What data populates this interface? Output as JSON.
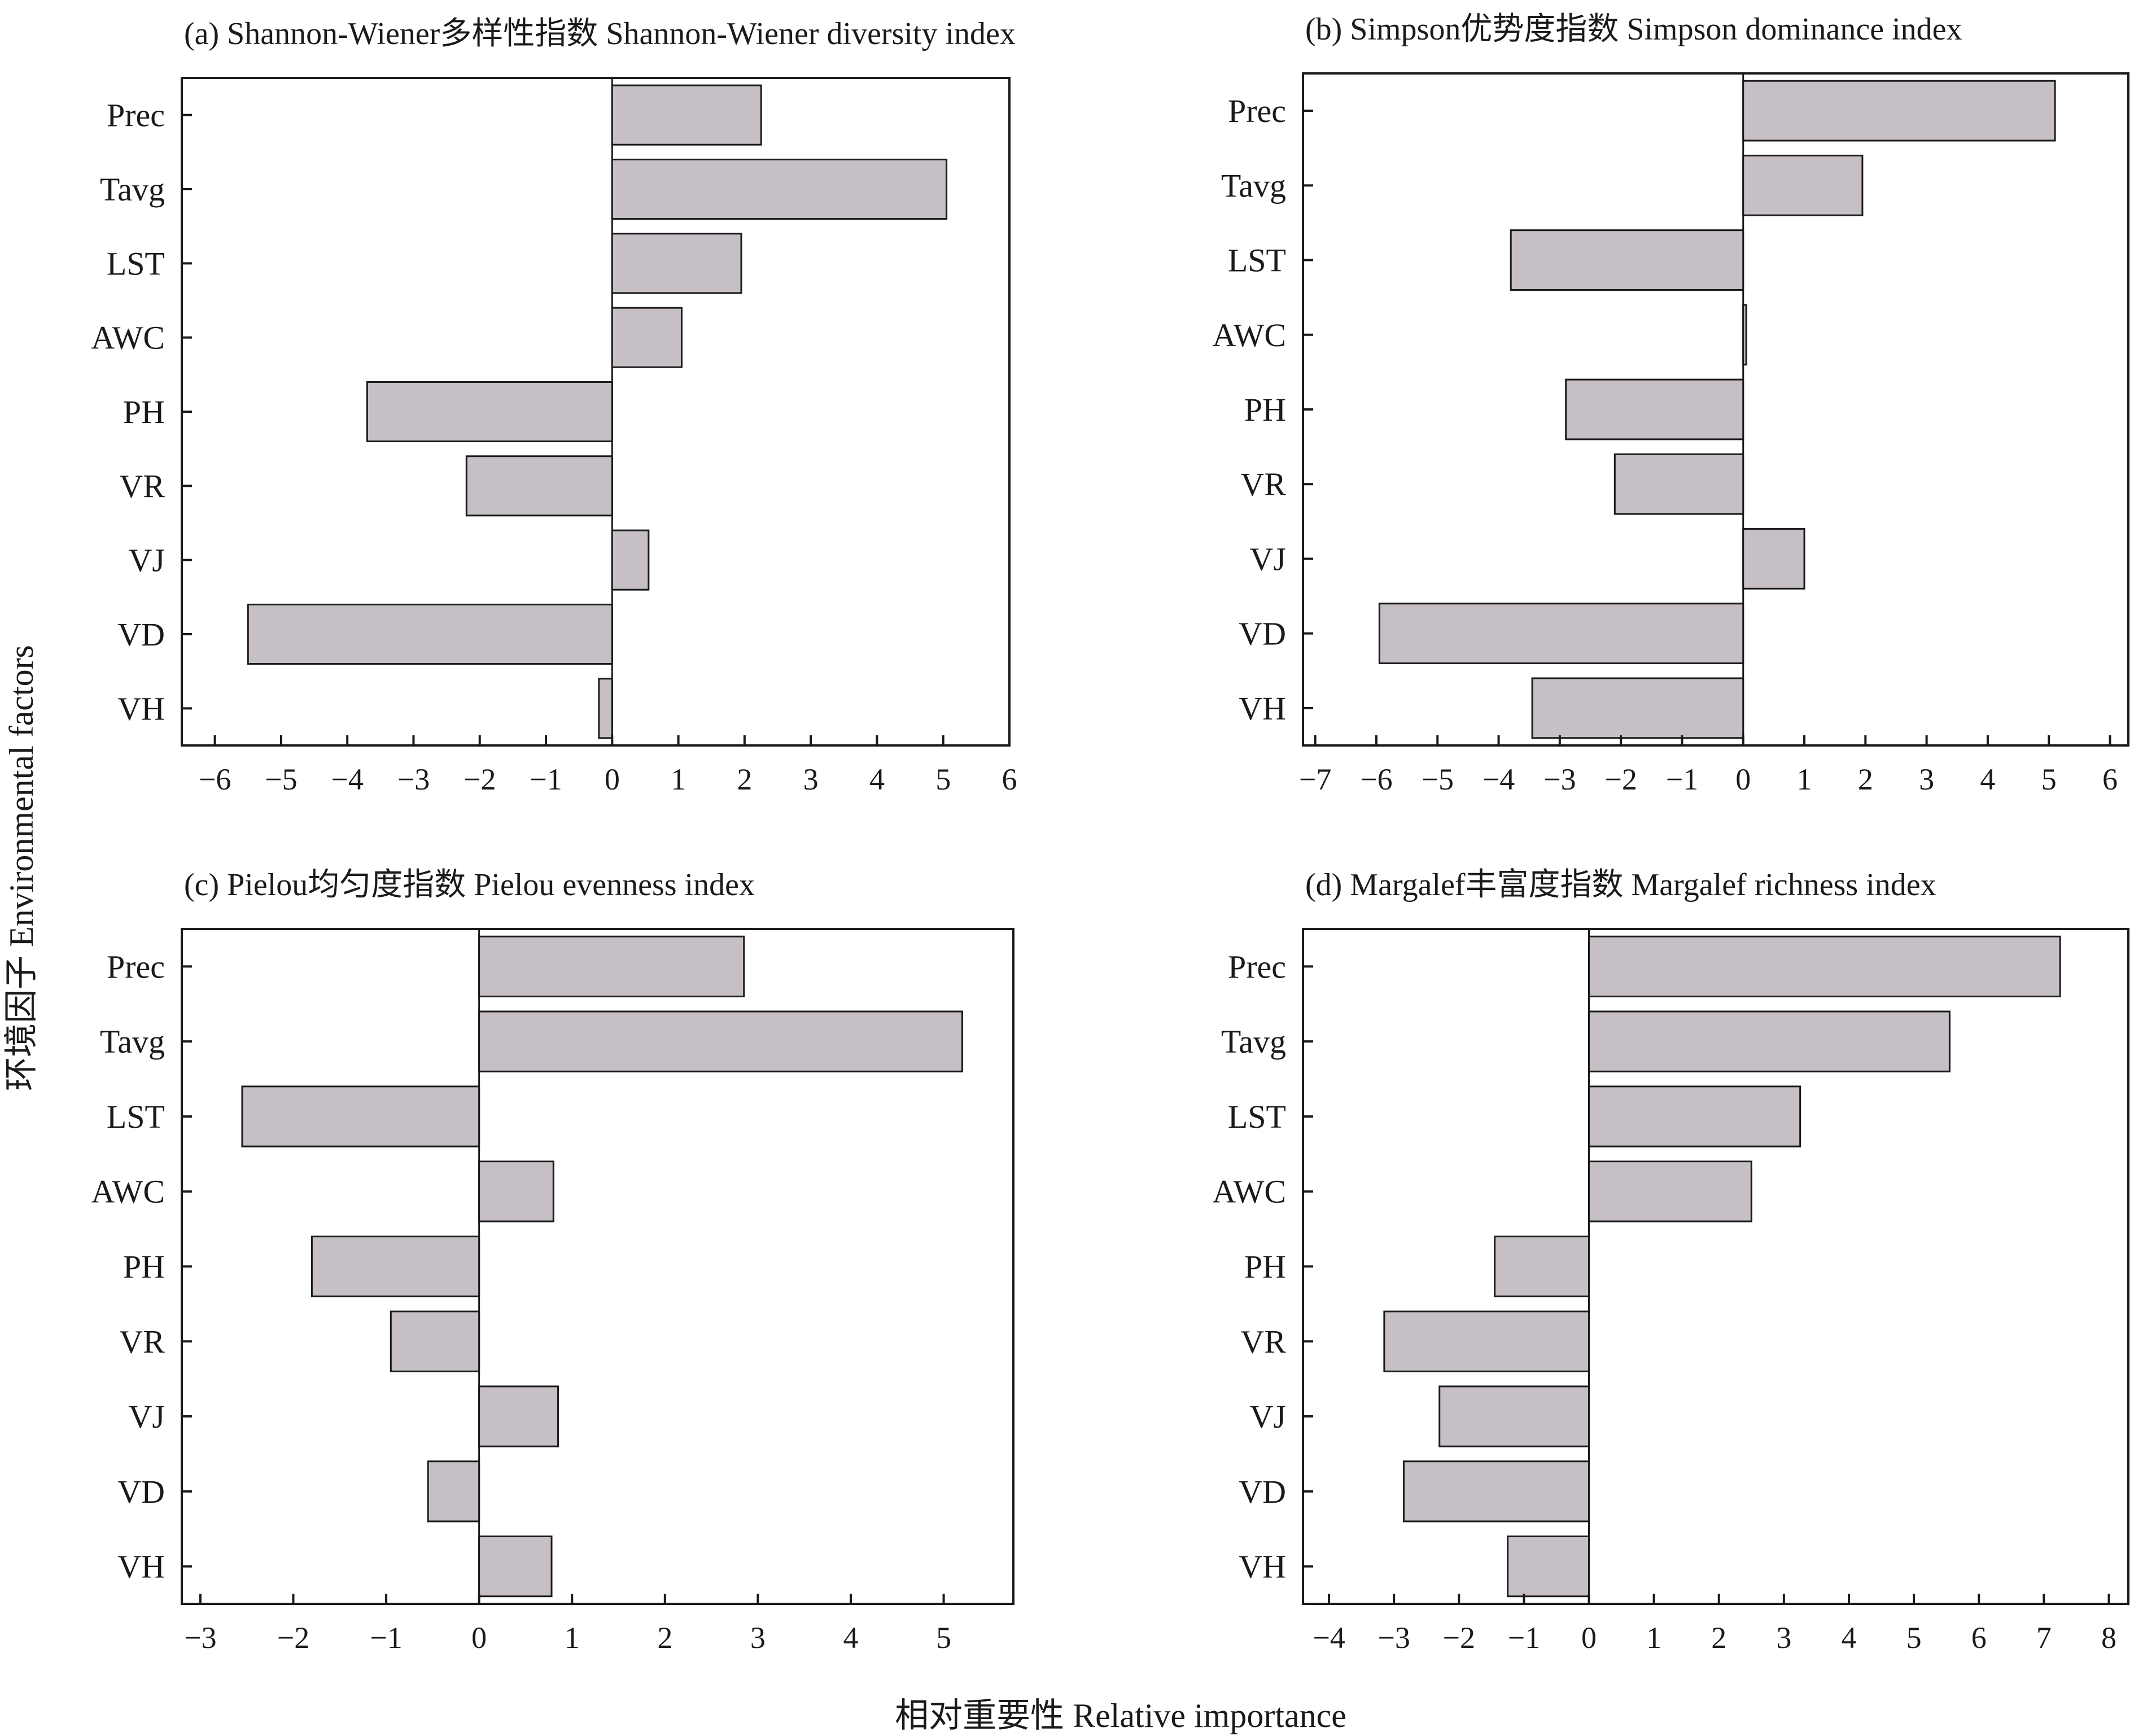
{
  "figure": {
    "ylabel": "环境因子 Environmental factors",
    "xlabel": "相对重要性 Relative importance"
  },
  "colors": {
    "bar_fill": "#c6c0c6",
    "bar_stroke": "#1a1a1a",
    "axis": "#1a1a1a"
  },
  "chart_data": [
    {
      "type": "bar",
      "orientation": "horizontal",
      "title": "(a) Shannon-Wiener多样性指数 Shannon-Wiener diversity index",
      "categories": [
        "Prec",
        "Tavg",
        "LST",
        "AWC",
        "PH",
        "VR",
        "VJ",
        "VD",
        "VH"
      ],
      "values": [
        2.25,
        5.05,
        1.95,
        1.05,
        -3.7,
        -2.2,
        0.55,
        -5.5,
        -0.2
      ],
      "xlim": [
        -6.5,
        6
      ],
      "xticks": [
        -6,
        -5,
        -4,
        -3,
        -2,
        -1,
        0,
        1,
        2,
        3,
        4,
        5,
        6
      ],
      "xtick_labels": [
        "−6",
        "−5",
        "−4",
        "−3",
        "−2",
        "−1",
        "0",
        "1",
        "2",
        "3",
        "4",
        "5",
        "6"
      ],
      "grid": false
    },
    {
      "type": "bar",
      "orientation": "horizontal",
      "title": "(b) Simpson优势度指数 Simpson dominance index",
      "categories": [
        "Prec",
        "Tavg",
        "LST",
        "AWC",
        "PH",
        "VR",
        "VJ",
        "VD",
        "VH"
      ],
      "values": [
        5.1,
        1.95,
        -3.8,
        0.05,
        -2.9,
        -2.1,
        1.0,
        -5.95,
        -3.45
      ],
      "xlim": [
        -7.2,
        6.3
      ],
      "xticks": [
        -7,
        -6,
        -5,
        -4,
        -3,
        -2,
        -1,
        0,
        1,
        2,
        3,
        4,
        5,
        6
      ],
      "xtick_labels": [
        "−7",
        "−6",
        "−5",
        "−4",
        "−3",
        "−2",
        "−1",
        "0",
        "1",
        "2",
        "3",
        "4",
        "5",
        "6"
      ],
      "grid": false
    },
    {
      "type": "bar",
      "orientation": "horizontal",
      "title": "(c) Pielou均匀度指数 Pielou evenness index",
      "categories": [
        "Prec",
        "Tavg",
        "LST",
        "AWC",
        "PH",
        "VR",
        "VJ",
        "VD",
        "VH"
      ],
      "values": [
        2.85,
        5.2,
        -2.55,
        0.8,
        -1.8,
        -0.95,
        0.85,
        -0.55,
        0.78
      ],
      "xlim": [
        -3.2,
        5.75
      ],
      "xticks": [
        -3,
        -2,
        -1,
        0,
        1,
        2,
        3,
        4,
        5
      ],
      "xtick_labels": [
        "−3",
        "−2",
        "−1",
        "0",
        "1",
        "2",
        "3",
        "4",
        "5"
      ],
      "grid": false
    },
    {
      "type": "bar",
      "orientation": "horizontal",
      "title": "(d) Margalef丰富度指数 Margalef richness index",
      "categories": [
        "Prec",
        "Tavg",
        "LST",
        "AWC",
        "PH",
        "VR",
        "VJ",
        "VD",
        "VH"
      ],
      "values": [
        7.25,
        5.55,
        3.25,
        2.5,
        -1.45,
        -3.15,
        -2.3,
        -2.85,
        -1.25
      ],
      "xlim": [
        -4.4,
        8.3
      ],
      "xticks": [
        -4,
        -3,
        -2,
        -1,
        0,
        1,
        2,
        3,
        4,
        5,
        6,
        7,
        8
      ],
      "xtick_labels": [
        "−4",
        "−3",
        "−2",
        "−1",
        "0",
        "1",
        "2",
        "3",
        "4",
        "5",
        "6",
        "7",
        "8"
      ],
      "grid": false
    }
  ]
}
